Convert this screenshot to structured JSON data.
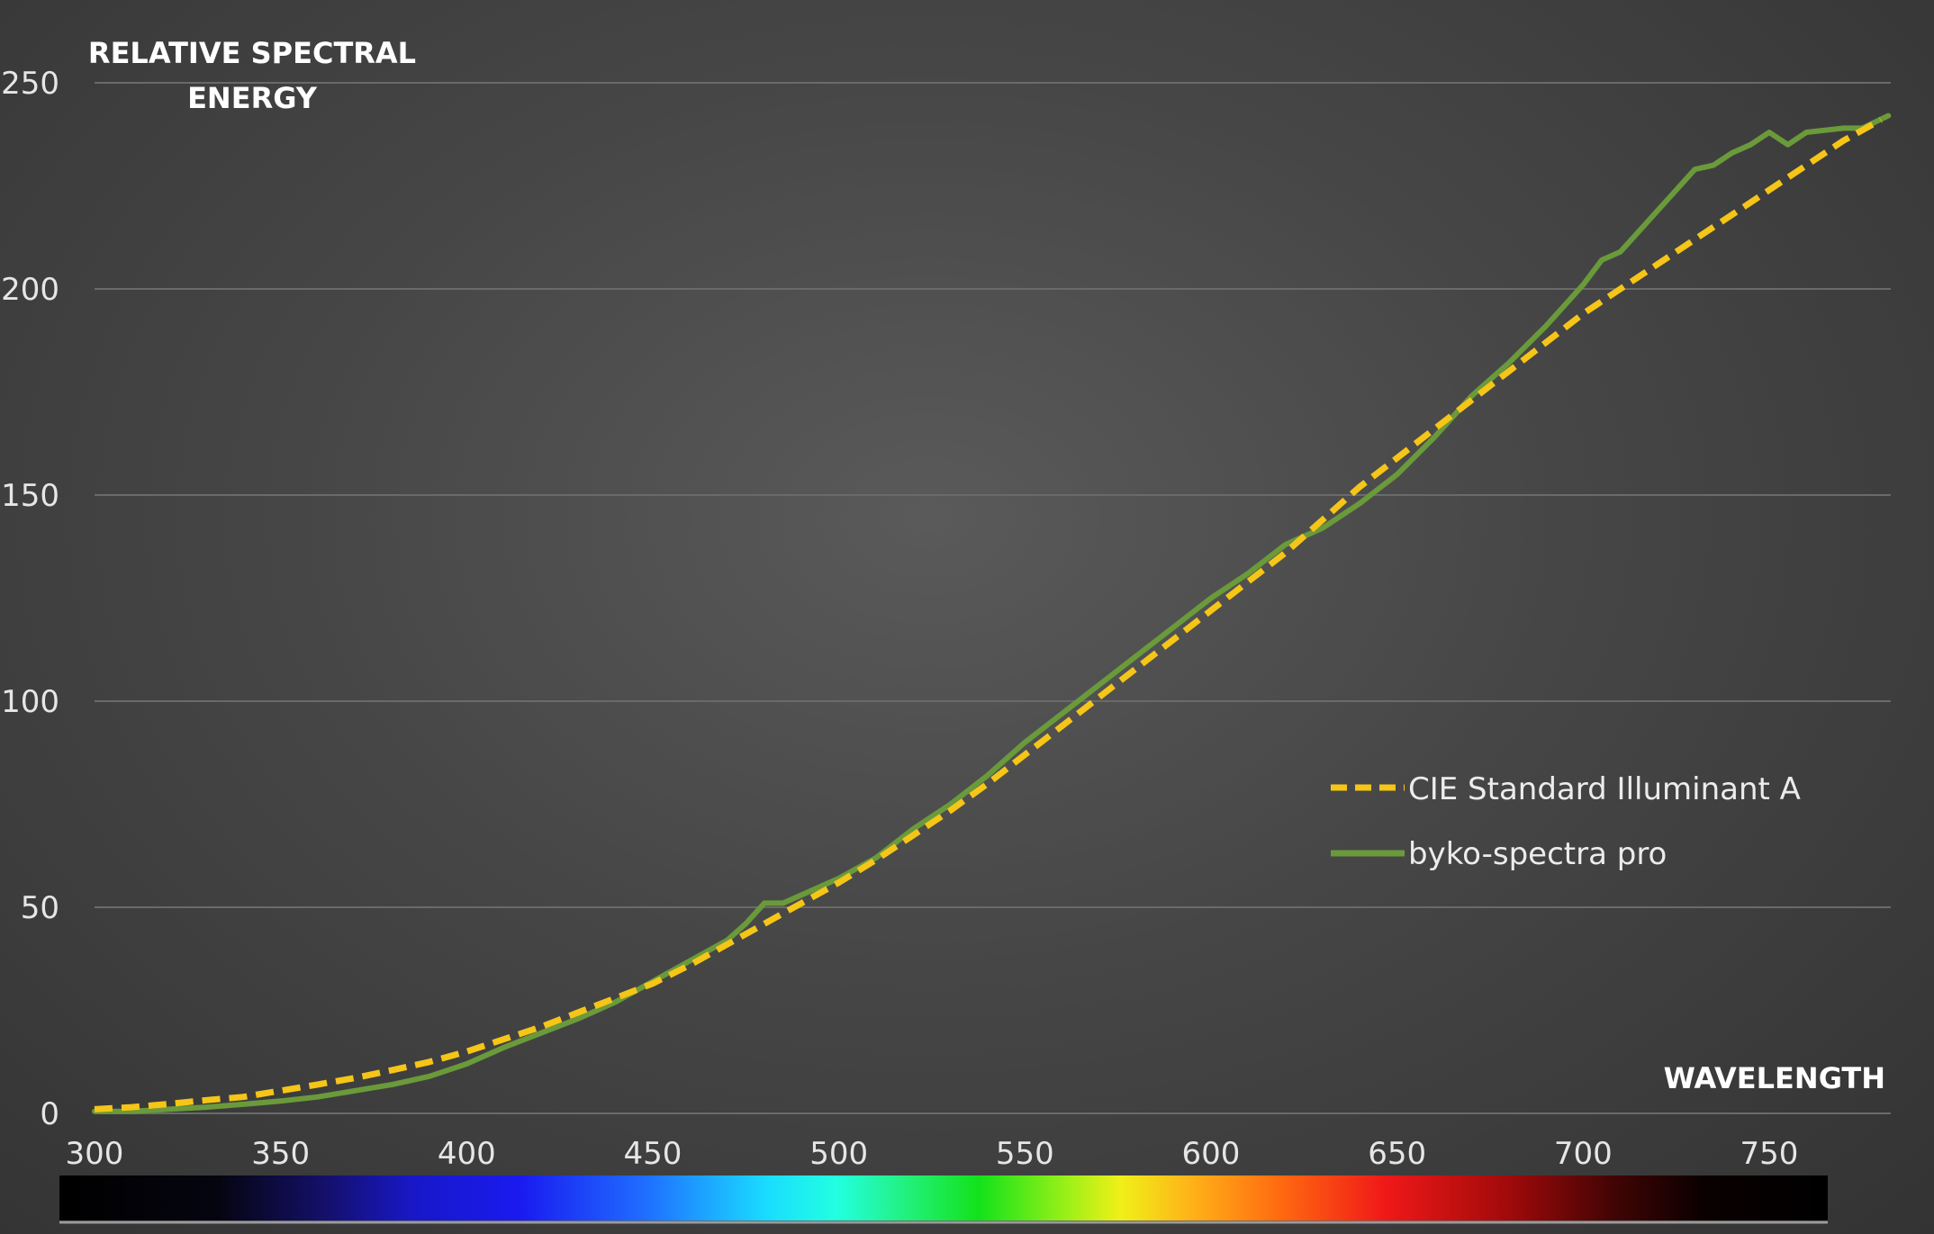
{
  "chart_data": {
    "type": "line",
    "ylabel_lines": [
      "RELATIVE SPECTRAL",
      "ENERGY"
    ],
    "xlabel": "WAVELENGTH",
    "xlim": [
      300,
      782
    ],
    "ylim": [
      0,
      250
    ],
    "x_ticks": [
      300,
      350,
      400,
      450,
      500,
      550,
      600,
      650,
      700,
      750
    ],
    "y_ticks": [
      0,
      50,
      100,
      150,
      200,
      250
    ],
    "grid": "horizontal",
    "legend_position": "center-right",
    "spectrum_bar": true,
    "series": [
      {
        "name": "CIE Standard Illuminant A",
        "color": "#f5c518",
        "style": "dashed",
        "x": [
          300,
          310,
          320,
          330,
          340,
          350,
          360,
          370,
          380,
          390,
          400,
          410,
          420,
          430,
          440,
          450,
          460,
          470,
          480,
          490,
          500,
          510,
          520,
          530,
          540,
          550,
          560,
          570,
          580,
          590,
          600,
          610,
          620,
          630,
          640,
          650,
          660,
          670,
          680,
          690,
          700,
          710,
          720,
          730,
          740,
          750,
          760,
          770,
          780
        ],
        "values": [
          1,
          1.5,
          2.3,
          3.2,
          4,
          5.5,
          7,
          8.6,
          10.5,
          12.5,
          15,
          18,
          21,
          24.5,
          28,
          31.5,
          36,
          41,
          46,
          51,
          56,
          61.5,
          67.5,
          73.5,
          80,
          87,
          94,
          101,
          108,
          115,
          122,
          129,
          136,
          144,
          152,
          159,
          166,
          173,
          180,
          187,
          194,
          200,
          206,
          212,
          218,
          224,
          230,
          236,
          241
        ]
      },
      {
        "name": "byko-spectra pro",
        "color": "#6a9a3a",
        "style": "solid",
        "x": [
          300,
          310,
          320,
          330,
          340,
          350,
          360,
          370,
          380,
          390,
          400,
          410,
          420,
          430,
          440,
          450,
          460,
          470,
          475,
          480,
          485,
          490,
          500,
          510,
          520,
          530,
          540,
          550,
          560,
          570,
          580,
          590,
          600,
          610,
          620,
          630,
          640,
          650,
          660,
          670,
          680,
          690,
          700,
          705,
          710,
          720,
          725,
          730,
          735,
          740,
          745,
          750,
          755,
          760,
          770,
          775,
          782
        ],
        "values": [
          0.5,
          0.5,
          1,
          1.5,
          2.2,
          3,
          4,
          5.5,
          7,
          9,
          12,
          16,
          19.5,
          23,
          27,
          32,
          37,
          42,
          46,
          51,
          51,
          53,
          57,
          62,
          69,
          75,
          82,
          90,
          97,
          104,
          111,
          118,
          125,
          131,
          138,
          142,
          148,
          155,
          164,
          174,
          182,
          191,
          201,
          207,
          209,
          219,
          224,
          229,
          230,
          233,
          235,
          238,
          235,
          238,
          239,
          239,
          242
        ]
      }
    ]
  }
}
